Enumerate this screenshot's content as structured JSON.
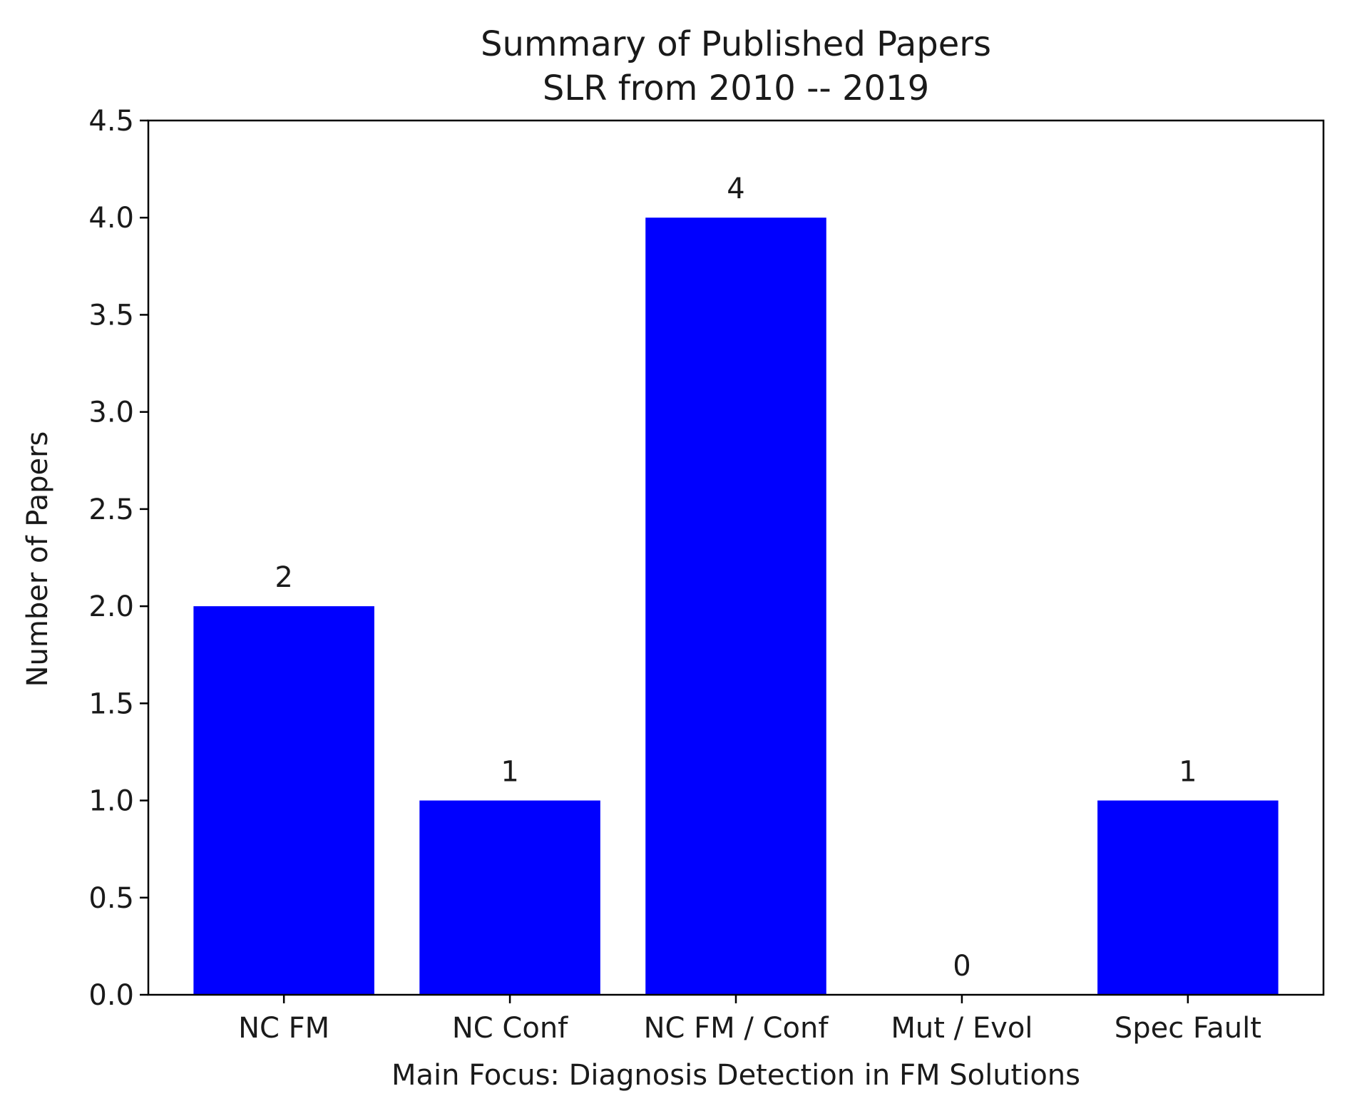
{
  "chart_data": {
    "type": "bar",
    "title": "Summary of  Published Papers",
    "subtitle": "SLR from 2010 -- 2019",
    "xlabel": "Main Focus: Diagnosis Detection in FM Solutions",
    "ylabel": "Number of Papers",
    "categories": [
      "NC FM",
      "NC Conf",
      "NC FM / Conf",
      "Mut / Evol",
      "Spec Fault"
    ],
    "values": [
      2,
      1,
      4,
      0,
      1
    ],
    "data_labels": [
      "2",
      "1",
      "4",
      "0",
      "1"
    ],
    "yticks": [
      0.0,
      0.5,
      1.0,
      1.5,
      2.0,
      2.5,
      3.0,
      3.5,
      4.0,
      4.5
    ],
    "ytick_labels": [
      "0.0",
      "0.5",
      "1.0",
      "1.5",
      "2.0",
      "2.5",
      "3.0",
      "3.5",
      "4.0",
      "4.5"
    ],
    "ylim": [
      0,
      4.5
    ],
    "grid": false,
    "legend": "none",
    "bar_color": "#0000ff"
  }
}
